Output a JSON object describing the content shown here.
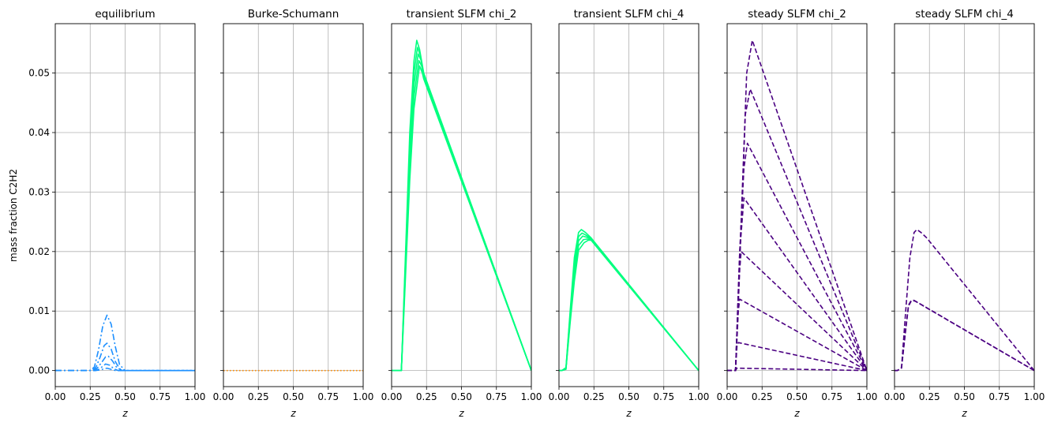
{
  "figure": {
    "ylabel": "mass fraction C2H2",
    "xlabel": "z",
    "x_ticks": [
      "0.00",
      "0.25",
      "0.50",
      "0.75",
      "1.00"
    ],
    "y_ticks": [
      "0.00",
      "0.01",
      "0.02",
      "0.03",
      "0.04",
      "0.05"
    ]
  },
  "chart_data": [
    {
      "type": "line",
      "title": "equilibrium",
      "xlim": [
        0,
        1
      ],
      "ylim": [
        -0.0027,
        0.0583
      ],
      "grid": true,
      "color": "#1e90ff",
      "linestyle": "dashdot",
      "series": [
        {
          "x": [
            0,
            0.25,
            0.28,
            0.31,
            0.34,
            0.37,
            0.4,
            0.43,
            0.46,
            0.5,
            1.0
          ],
          "y": [
            0,
            0,
            0.0006,
            0.0035,
            0.0075,
            0.0093,
            0.0078,
            0.004,
            0.001,
            0,
            0
          ]
        },
        {
          "x": [
            0,
            0.26,
            0.29,
            0.32,
            0.35,
            0.37,
            0.4,
            0.43,
            0.46,
            0.5,
            1.0
          ],
          "y": [
            0,
            0,
            0.0005,
            0.0022,
            0.0042,
            0.0046,
            0.0036,
            0.0015,
            0.0003,
            0,
            0
          ]
        },
        {
          "x": [
            0,
            0.27,
            0.3,
            0.33,
            0.36,
            0.38,
            0.41,
            0.44,
            0.48,
            1.0
          ],
          "y": [
            0,
            0,
            0.0004,
            0.0013,
            0.0023,
            0.0024,
            0.0016,
            0.0005,
            0,
            0
          ]
        },
        {
          "x": [
            0,
            0.28,
            0.31,
            0.34,
            0.36,
            0.39,
            0.42,
            0.45,
            1.0
          ],
          "y": [
            0,
            0,
            0.0002,
            0.0007,
            0.0011,
            0.0009,
            0.0003,
            0,
            0
          ]
        },
        {
          "x": [
            0,
            0.29,
            0.32,
            0.35,
            0.37,
            0.4,
            0.43,
            1.0
          ],
          "y": [
            0,
            0,
            0.0001,
            0.0003,
            0.0004,
            0.0002,
            0,
            0
          ]
        }
      ]
    },
    {
      "type": "line",
      "title": "Burke-Schumann",
      "xlim": [
        0,
        1
      ],
      "ylim": [
        -0.0027,
        0.0583
      ],
      "grid": true,
      "color": "#ff8c00",
      "linestyle": "dotted",
      "series": [
        {
          "x": [
            0,
            1
          ],
          "y": [
            0,
            0
          ]
        }
      ]
    },
    {
      "type": "line",
      "title": "transient SLFM chi_2",
      "xlim": [
        0,
        1
      ],
      "ylim": [
        -0.0027,
        0.0583
      ],
      "grid": true,
      "color": "#00ff7f",
      "linestyle": "solid",
      "series": [
        {
          "x": [
            0,
            0.07,
            0.1,
            0.13,
            0.16,
            0.18,
            0.2,
            0.23,
            1.0
          ],
          "y": [
            0,
            0,
            0.02,
            0.04,
            0.052,
            0.0555,
            0.054,
            0.05,
            0
          ]
        },
        {
          "x": [
            0,
            0.07,
            0.1,
            0.13,
            0.16,
            0.185,
            0.205,
            0.23,
            1.0
          ],
          "y": [
            0,
            0,
            0.019,
            0.038,
            0.05,
            0.0543,
            0.053,
            0.0497,
            0
          ]
        },
        {
          "x": [
            0,
            0.07,
            0.1,
            0.13,
            0.16,
            0.19,
            0.21,
            0.23,
            1.0
          ],
          "y": [
            0,
            0,
            0.018,
            0.036,
            0.048,
            0.0532,
            0.0522,
            0.0494,
            0
          ]
        },
        {
          "x": [
            0,
            0.07,
            0.1,
            0.13,
            0.16,
            0.195,
            0.215,
            0.23,
            1.0
          ],
          "y": [
            0,
            0,
            0.017,
            0.034,
            0.046,
            0.0521,
            0.0512,
            0.0492,
            0
          ]
        },
        {
          "x": [
            0,
            0.07,
            0.1,
            0.13,
            0.16,
            0.2,
            0.22,
            0.23,
            1.0
          ],
          "y": [
            0,
            0,
            0.016,
            0.032,
            0.044,
            0.0512,
            0.05,
            0.049,
            0
          ]
        }
      ]
    },
    {
      "type": "line",
      "title": "transient SLFM chi_4",
      "xlim": [
        0,
        1
      ],
      "ylim": [
        -0.0027,
        0.0583
      ],
      "grid": true,
      "color": "#00ff7f",
      "linestyle": "solid",
      "series": [
        {
          "x": [
            0,
            0.02,
            0.05,
            0.08,
            0.11,
            0.14,
            0.16,
            0.19,
            0.23,
            1.0
          ],
          "y": [
            0,
            0,
            0.0005,
            0.01,
            0.019,
            0.0232,
            0.0237,
            0.0232,
            0.0223,
            0
          ]
        },
        {
          "x": [
            0,
            0.02,
            0.05,
            0.08,
            0.11,
            0.14,
            0.165,
            0.19,
            0.23,
            1.0
          ],
          "y": [
            0,
            0,
            0.0004,
            0.0095,
            0.018,
            0.0225,
            0.0231,
            0.0228,
            0.0222,
            0
          ]
        },
        {
          "x": [
            0,
            0.02,
            0.05,
            0.08,
            0.11,
            0.14,
            0.17,
            0.2,
            0.23,
            1.0
          ],
          "y": [
            0,
            0,
            0.0003,
            0.009,
            0.017,
            0.0218,
            0.0226,
            0.0224,
            0.0221,
            0
          ]
        },
        {
          "x": [
            0,
            0.02,
            0.05,
            0.08,
            0.11,
            0.14,
            0.175,
            0.2,
            0.23,
            1.0
          ],
          "y": [
            0,
            0,
            0.0003,
            0.0085,
            0.016,
            0.021,
            0.022,
            0.0221,
            0.022,
            0
          ]
        },
        {
          "x": [
            0,
            0.02,
            0.05,
            0.08,
            0.11,
            0.14,
            0.18,
            0.21,
            0.23,
            1.0
          ],
          "y": [
            0,
            0,
            0.0002,
            0.008,
            0.015,
            0.0202,
            0.0215,
            0.0219,
            0.0219,
            0
          ]
        }
      ]
    },
    {
      "type": "line",
      "title": "steady SLFM chi_2",
      "xlim": [
        0,
        1
      ],
      "ylim": [
        -0.0027,
        0.0583
      ],
      "grid": true,
      "color": "#4b0082",
      "linestyle": "dashed",
      "series": [
        {
          "x": [
            0,
            0.06,
            0.1,
            0.14,
            0.18,
            1.0
          ],
          "y": [
            0,
            0,
            0.025,
            0.05,
            0.0555,
            0
          ]
        },
        {
          "x": [
            0,
            0.06,
            0.1,
            0.13,
            0.165,
            1.0
          ],
          "y": [
            0,
            0,
            0.024,
            0.043,
            0.0473,
            0
          ]
        },
        {
          "x": [
            0,
            0.06,
            0.09,
            0.12,
            0.145,
            1.0
          ],
          "y": [
            0,
            0,
            0.02,
            0.034,
            0.0382,
            0
          ]
        },
        {
          "x": [
            0,
            0.06,
            0.09,
            0.12,
            1.0
          ],
          "y": [
            0,
            0,
            0.02,
            0.029,
            0
          ]
        },
        {
          "x": [
            0,
            0.06,
            0.09,
            0.1,
            1.0
          ],
          "y": [
            0,
            0,
            0.017,
            0.02,
            0
          ]
        },
        {
          "x": [
            0,
            0.06,
            0.08,
            0.09,
            1.0
          ],
          "y": [
            0,
            0,
            0.01,
            0.012,
            0
          ]
        },
        {
          "x": [
            0,
            0.06,
            0.07,
            0.08,
            1.0
          ],
          "y": [
            0,
            0,
            0.004,
            0.0047,
            0
          ]
        },
        {
          "x": [
            0,
            0.06,
            0.07,
            1.0
          ],
          "y": [
            0,
            0,
            0.0004,
            0
          ]
        }
      ]
    },
    {
      "type": "line",
      "title": "steady SLFM chi_4",
      "xlim": [
        0,
        1
      ],
      "ylim": [
        -0.0027,
        0.0583
      ],
      "grid": true,
      "color": "#4b0082",
      "linestyle": "dashed",
      "series": [
        {
          "x": [
            0,
            0.02,
            0.05,
            0.08,
            0.11,
            0.14,
            0.16,
            0.19,
            0.23,
            1.0
          ],
          "y": [
            0,
            0,
            0.0005,
            0.01,
            0.019,
            0.0232,
            0.0237,
            0.0232,
            0.0223,
            0
          ]
        },
        {
          "x": [
            0,
            0.02,
            0.05,
            0.08,
            0.1,
            0.12,
            0.14,
            1.0
          ],
          "y": [
            0,
            0,
            0.0005,
            0.007,
            0.011,
            0.0118,
            0.0118,
            0
          ]
        },
        {
          "x": [
            0,
            0.02,
            0.05,
            0.08,
            0.1,
            0.12,
            0.145,
            1.0
          ],
          "y": [
            0,
            0,
            0.0004,
            0.0068,
            0.0108,
            0.0117,
            0.0117,
            0
          ]
        }
      ]
    }
  ]
}
